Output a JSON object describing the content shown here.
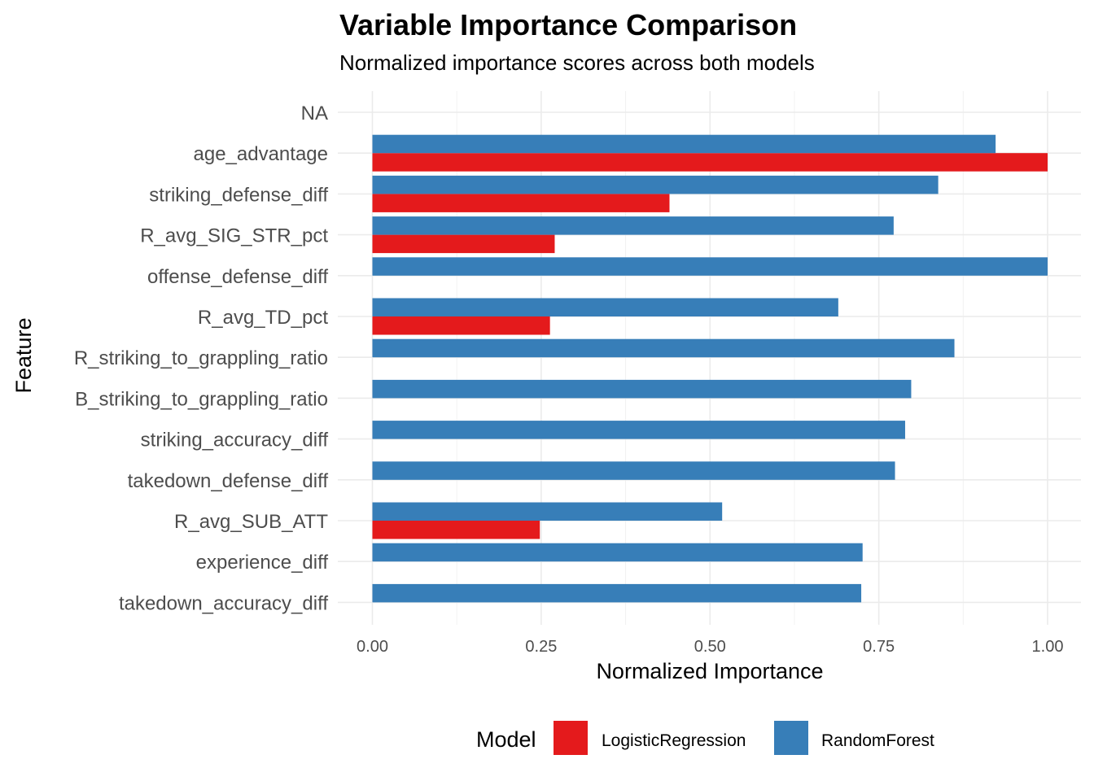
{
  "chart_data": {
    "type": "bar",
    "orientation": "horizontal",
    "title": "Variable Importance Comparison",
    "subtitle": "Normalized importance scores across both models",
    "xlabel": "Normalized Importance",
    "ylabel": "Feature",
    "xlim": [
      0,
      1
    ],
    "xticks": [
      "0.00",
      "0.25",
      "0.50",
      "0.75",
      "1.00"
    ],
    "xtick_values": [
      0,
      0.25,
      0.5,
      0.75,
      1.0
    ],
    "categories": [
      "NA",
      "age_advantage",
      "striking_defense_diff",
      "R_avg_SIG_STR_pct",
      "offense_defense_diff",
      "R_avg_TD_pct",
      "R_striking_to_grappling_ratio",
      "B_striking_to_grappling_ratio",
      "striking_accuracy_diff",
      "takedown_defense_diff",
      "R_avg_SUB_ATT",
      "experience_diff",
      "takedown_accuracy_diff"
    ],
    "series": [
      {
        "name": "LogisticRegression",
        "color": "#e41a1c",
        "values": [
          null,
          1.0,
          0.44,
          0.27,
          null,
          0.263,
          null,
          null,
          null,
          null,
          0.248,
          null,
          null
        ]
      },
      {
        "name": "RandomForest",
        "color": "#377eb8",
        "values": [
          null,
          0.923,
          0.838,
          0.772,
          1.0,
          0.69,
          0.862,
          0.798,
          0.789,
          0.774,
          0.518,
          0.726,
          0.724
        ]
      }
    ],
    "legend": {
      "title": "Model",
      "position": "bottom"
    },
    "grid": true
  }
}
